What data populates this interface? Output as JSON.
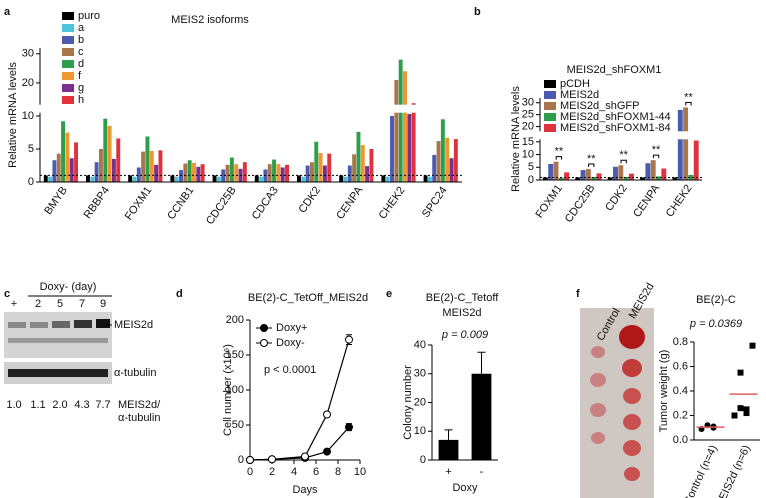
{
  "panel_labels": [
    "a",
    "b",
    "c",
    "d",
    "e",
    "f"
  ],
  "blot": {
    "header": "Doxy- (day)",
    "lanes": [
      "+",
      "2",
      "5",
      "7",
      "9"
    ],
    "bands": [
      "MEIS2d",
      "α-tubulin"
    ],
    "ratios": [
      "1.0",
      "1.1",
      "2.0",
      "4.3",
      "7.7"
    ],
    "ratio_label": [
      "MEIS2d/",
      "α-tubulin"
    ]
  },
  "photo": {
    "labels": [
      "Control",
      "MEIS2d"
    ]
  },
  "chart_data": [
    {
      "type": "grouped_bar",
      "title": "MEIS2 isoforms",
      "y_label": "Relative mRNA levels",
      "categories": [
        "BMYB",
        "RBBP4",
        "FOXM1",
        "CCNB1",
        "CDC25B",
        "CDCA3",
        "CDK2",
        "CENPA",
        "CHEK2",
        "SPC24"
      ],
      "series": [
        {
          "name": "puro",
          "color": "#000000",
          "values": [
            1,
            1,
            1,
            1,
            1,
            1,
            1,
            1,
            1,
            1
          ]
        },
        {
          "name": "a",
          "color": "#4fc3dc",
          "values": [
            0.8,
            0.8,
            0.8,
            0.8,
            0.8,
            0.8,
            0.8,
            0.8,
            0.8,
            0.8
          ]
        },
        {
          "name": "b",
          "color": "#4b5cb0",
          "values": [
            3.3,
            3,
            2.2,
            1.8,
            1.9,
            1.9,
            2.5,
            2.5,
            10,
            4.1
          ]
        },
        {
          "name": "c",
          "color": "#a8764a",
          "values": [
            4.3,
            5,
            4.6,
            2.8,
            2.6,
            2.7,
            3,
            4.2,
            21,
            6.2
          ]
        },
        {
          "name": "d",
          "color": "#2e9e4a",
          "values": [
            9.2,
            9.6,
            6.9,
            3.3,
            3.7,
            3.4,
            6.1,
            7.6,
            28,
            9.5
          ]
        },
        {
          "name": "f",
          "color": "#f0962e",
          "values": [
            7.5,
            8.5,
            4.7,
            2.9,
            2.7,
            2.7,
            4.4,
            5.6,
            24,
            6.7
          ]
        },
        {
          "name": "g",
          "color": "#7b2f8e",
          "values": [
            3.6,
            3.5,
            2.6,
            2.3,
            2,
            2.2,
            2.5,
            2.4,
            10.3,
            3.6
          ]
        },
        {
          "name": "h",
          "color": "#e0323c",
          "values": [
            6,
            6.6,
            4.8,
            2.7,
            3,
            2.6,
            4.3,
            5,
            13,
            6.5
          ]
        }
      ],
      "ylim": [
        0,
        32
      ],
      "ybreak": [
        10.5,
        12.5
      ],
      "yticks": [
        0,
        5,
        10,
        20,
        30
      ],
      "ref_line": 1
    },
    {
      "type": "grouped_bar",
      "title": "MEIS2d_shFOXM1",
      "y_label": "Relative mRNA levels",
      "categories": [
        "FOXM1",
        "CDC25B",
        "CDK2",
        "CENPA",
        "CHEK2"
      ],
      "series": [
        {
          "name": "pCDH",
          "color": "#000000",
          "values": [
            1,
            1,
            1,
            1,
            1
          ]
        },
        {
          "name": "MEIS2d",
          "color": "#4b5cb0",
          "values": [
            6.3,
            3.9,
            5.2,
            6.6,
            27
          ]
        },
        {
          "name": "MEIS2d_shGFP",
          "color": "#a8764a",
          "values": [
            7.2,
            4.3,
            5.8,
            7.8,
            28
          ]
        },
        {
          "name": "MEIS2d_shFOXM1-44",
          "color": "#2e9e4a",
          "values": [
            0.8,
            1.2,
            1.2,
            1.4,
            2
          ]
        },
        {
          "name": "MEIS2d_shFOXM1-84",
          "color": "#e0323c",
          "values": [
            3,
            2.6,
            2.5,
            4.5,
            15.5
          ]
        }
      ],
      "ylim": [
        0,
        32
      ],
      "ybreak": [
        16,
        18
      ],
      "yticks": [
        0,
        5,
        10,
        15,
        20,
        25,
        30
      ],
      "ref_line": 1,
      "annotations": [
        "**",
        "**",
        "**",
        "**",
        "**"
      ]
    },
    {
      "type": "line",
      "title": "BE(2)-C_TetOff_MEIS2d",
      "x_label": "Days",
      "y_label": "Cell number (x10⁶)",
      "x": [
        0,
        2,
        5,
        7,
        9
      ],
      "series": [
        {
          "name": "Doxy+",
          "color": "#000000",
          "marker": "filled",
          "values": [
            0,
            1,
            3,
            12,
            47
          ],
          "errors": [
            0,
            0,
            1,
            2,
            5
          ]
        },
        {
          "name": "Doxy-",
          "color": "#000000",
          "marker": "open",
          "values": [
            0,
            1,
            5,
            65,
            172
          ],
          "errors": [
            0,
            0,
            1,
            3,
            7
          ]
        }
      ],
      "xlim": [
        0,
        10
      ],
      "xticks": [
        0,
        2,
        4,
        6,
        8,
        10
      ],
      "ylim": [
        0,
        200
      ],
      "yticks": [
        0,
        50,
        100,
        150,
        200
      ],
      "annotation": "p < 0.0001"
    },
    {
      "type": "bar",
      "title": [
        "BE(2)-C_Tetoff",
        "MEIS2d"
      ],
      "x_label": "Doxy",
      "y_label": "Colony number",
      "categories": [
        "+",
        "-"
      ],
      "values": [
        7,
        30
      ],
      "errors": [
        3.5,
        7.5
      ],
      "color": "#000000",
      "ylim": [
        0,
        40
      ],
      "yticks": [
        0,
        10,
        20,
        30,
        40
      ],
      "annotation": "p = 0.009"
    },
    {
      "type": "dot",
      "title": "BE(2)-C",
      "y_label": "Tumor weight (g)",
      "categories": [
        "Control (n=4)",
        "MEIS2d (n=6)"
      ],
      "points": [
        [
          0.09,
          0.1,
          0.11,
          0.12
        ],
        [
          0.2,
          0.22,
          0.25,
          0.26,
          0.55,
          0.77
        ]
      ],
      "markers": [
        "circle",
        "square"
      ],
      "means": [
        0.105,
        0.375
      ],
      "mean_color": "#e06060",
      "ylim": [
        0,
        0.8
      ],
      "yticks": [
        {
          "value": 0,
          "label": "0.0"
        },
        0.2,
        0.4,
        0.6,
        0.8
      ],
      "annotation": "p = 0.0369"
    }
  ]
}
